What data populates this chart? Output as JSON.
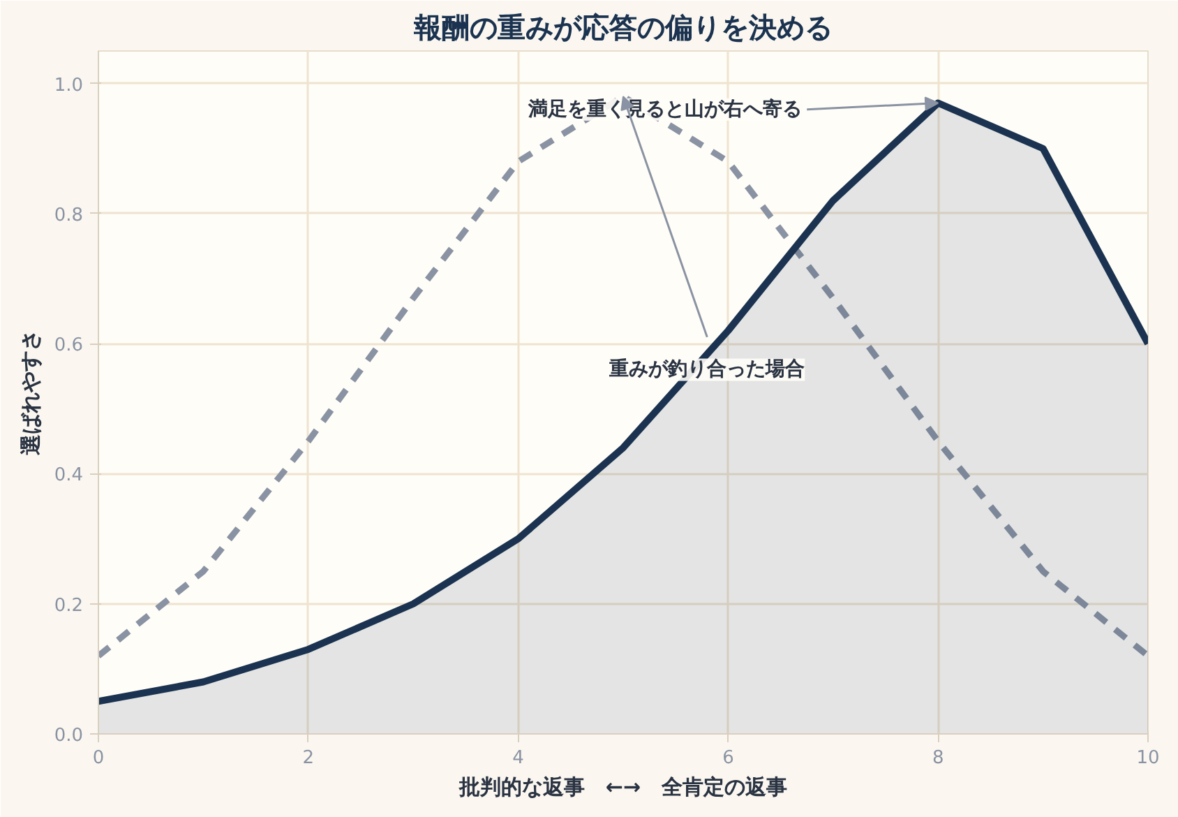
{
  "chart_data": {
    "type": "line",
    "title": "報酬の重みが応答の偏りを決める",
    "xlabel": "批判的な返事　←→　全肯定の返事",
    "ylabel": "選ばれやすさ",
    "x": [
      0,
      1,
      2,
      3,
      4,
      5,
      6,
      7,
      8,
      9,
      10
    ],
    "series": [
      {
        "color": "#8a93a3",
        "line_style": "dashed",
        "values": [
          0.12,
          0.25,
          0.45,
          0.67,
          0.88,
          0.98,
          0.88,
          0.67,
          0.45,
          0.25,
          0.12
        ]
      },
      {
        "type": "area",
        "color": "#1b3350",
        "values": [
          0.05,
          0.08,
          0.13,
          0.2,
          0.3,
          0.44,
          0.62,
          0.82,
          0.97,
          0.9,
          0.6
        ]
      }
    ],
    "annotations": [
      {
        "text": "満足を重く見ると山が右へ寄る",
        "x": 8,
        "y": 0.97
      },
      {
        "text": "重みが釣り合った場合",
        "x": 5,
        "y": 0.98
      }
    ],
    "xlim": [
      0,
      10
    ],
    "ylim": [
      0,
      1.05
    ],
    "xticks": [
      0,
      2,
      4,
      6,
      8,
      10
    ],
    "yticks": [
      {
        "value": 0,
        "label": "0.0"
      },
      {
        "value": 0.2,
        "label": "0.2"
      },
      {
        "value": 0.4,
        "label": "0.4"
      },
      {
        "value": 0.6,
        "label": "0.6"
      },
      {
        "value": 0.8,
        "label": "0.8"
      },
      {
        "value": 1,
        "label": "1.0"
      }
    ],
    "grid": true,
    "marker": "none"
  }
}
